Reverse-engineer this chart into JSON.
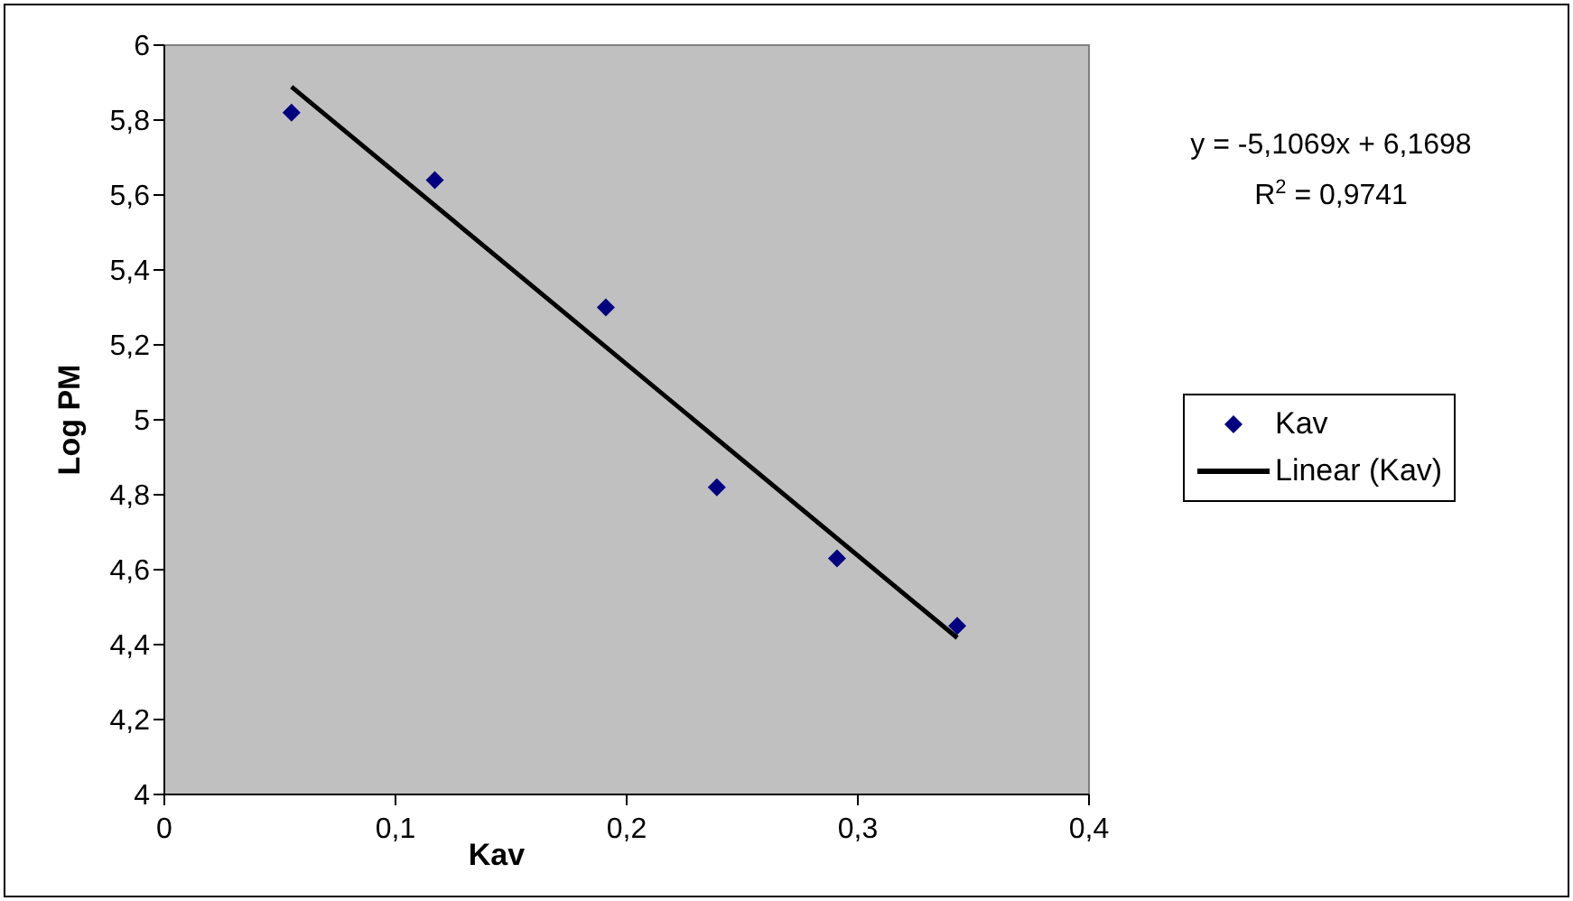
{
  "chart_data": {
    "type": "scatter",
    "xlabel": "Kav",
    "ylabel": "Log PM",
    "xlim": [
      0,
      0.4
    ],
    "ylim": [
      4,
      6
    ],
    "xticks": [
      0,
      {
        "value": 0.1,
        "label": "0,1"
      },
      {
        "value": 0.2,
        "label": "0,2"
      },
      {
        "value": 0.3,
        "label": "0,3"
      },
      {
        "value": 0.4,
        "label": "0,4"
      }
    ],
    "yticks": [
      4,
      {
        "value": 4.2,
        "label": "4,2"
      },
      {
        "value": 4.4,
        "label": "4,4"
      },
      {
        "value": 4.6,
        "label": "4,6"
      },
      {
        "value": 4.8,
        "label": "4,8"
      },
      5,
      {
        "value": 5.2,
        "label": "5,2"
      },
      {
        "value": 5.4,
        "label": "5,4"
      },
      {
        "value": 5.6,
        "label": "5,6"
      },
      {
        "value": 5.8,
        "label": "5,8"
      },
      6
    ],
    "series": [
      {
        "name": "Kav",
        "color": "#000080",
        "marker": "diamond",
        "x": [
          0.055,
          0.117,
          0.191,
          0.239,
          0.291,
          0.343
        ],
        "values": [
          5.82,
          5.64,
          5.3,
          4.82,
          4.63,
          4.45
        ]
      },
      {
        "name": "Linear (Kav)",
        "type": "line",
        "color": "#000000",
        "line_style": "solid",
        "marker": "none",
        "x": [
          0.055,
          0.343
        ],
        "values": [
          5.889,
          4.418
        ]
      }
    ],
    "annotations": [
      "y = -5,1069x + 6,1698",
      "R$^{2}$ = 0,9741"
    ],
    "legend": "right"
  }
}
